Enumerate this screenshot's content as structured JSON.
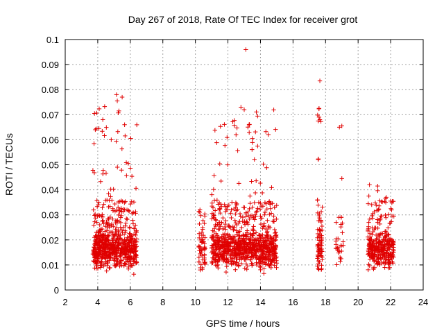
{
  "chart_data": {
    "type": "scatter",
    "title": "Day 267 of 2018, Rate Of TEC Index for receiver grot",
    "xlabel": "GPS time / hours",
    "ylabel": "ROTI / TECUs",
    "xlim": [
      2,
      24
    ],
    "ylim": [
      0,
      0.1
    ],
    "xticks": [
      "2",
      "4",
      "6",
      "8",
      "10",
      "12",
      "14",
      "16",
      "18",
      "20",
      "22",
      "24"
    ],
    "yticks": [
      "0",
      "0.01",
      "0.02",
      "0.03",
      "0.04",
      "0.05",
      "0.06",
      "0.07",
      "0.08",
      "0.09",
      "0.1"
    ],
    "grid": true,
    "marker": "plus",
    "color": "#e00000",
    "clusters": [
      {
        "x_range": [
          3.7,
          6.4
        ],
        "y_range": [
          0.005,
          0.078
        ],
        "n": 700,
        "y_median": 0.016
      },
      {
        "x_range": [
          10.2,
          10.6
        ],
        "y_range": [
          0.008,
          0.032
        ],
        "n": 60,
        "y_median": 0.015
      },
      {
        "x_range": [
          11.0,
          15.0
        ],
        "y_range": [
          0.005,
          0.073
        ],
        "n": 900,
        "y_median": 0.016
      },
      {
        "x_range": [
          17.5,
          17.8
        ],
        "y_range": [
          0.008,
          0.073
        ],
        "n": 80,
        "y_median": 0.016
      },
      {
        "x_range": [
          18.6,
          19.1
        ],
        "y_range": [
          0.009,
          0.029
        ],
        "n": 30,
        "y_median": 0.016
      },
      {
        "x_range": [
          20.6,
          22.2
        ],
        "y_range": [
          0.007,
          0.042
        ],
        "n": 350,
        "y_median": 0.016
      }
    ],
    "points": [
      [
        3.8,
        0.0705
      ],
      [
        3.85,
        0.064
      ],
      [
        5.15,
        0.078
      ],
      [
        5.5,
        0.077
      ],
      [
        5.2,
        0.0755
      ],
      [
        5.3,
        0.0715
      ],
      [
        5.65,
        0.066
      ],
      [
        13.1,
        0.096
      ],
      [
        12.8,
        0.073
      ],
      [
        13.0,
        0.072
      ],
      [
        13.3,
        0.066
      ],
      [
        13.5,
        0.0605
      ],
      [
        12.5,
        0.062
      ],
      [
        17.65,
        0.0835
      ],
      [
        17.6,
        0.0725
      ],
      [
        17.6,
        0.069
      ],
      [
        17.65,
        0.068
      ],
      [
        18.85,
        0.065
      ],
      [
        19.0,
        0.0655
      ],
      [
        19.0,
        0.0445
      ],
      [
        21.2,
        0.0415
      ],
      [
        20.7,
        0.042
      ],
      [
        21.7,
        0.035
      ],
      [
        22.0,
        0.0355
      ]
    ]
  }
}
